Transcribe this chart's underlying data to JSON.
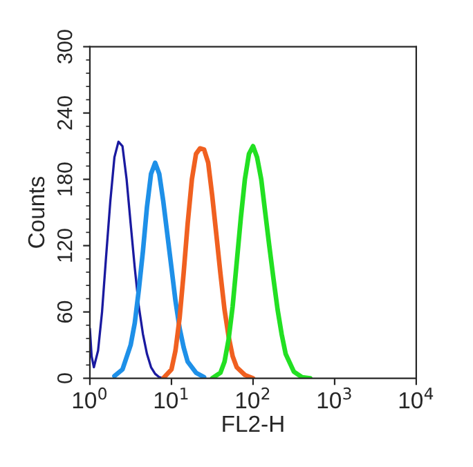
{
  "chart_data": {
    "type": "line",
    "xlabel": "FL2-H",
    "ylabel": "Counts",
    "log": "x",
    "grid": false,
    "legend": false,
    "marker": "none",
    "line_style": "solid",
    "xlim": [
      1,
      10000
    ],
    "xticks": [
      {
        "value": 1,
        "label": "10$^{0}$"
      },
      {
        "value": 10,
        "label": "10$^{1}$"
      },
      {
        "value": 100,
        "label": "10$^{2}$"
      },
      {
        "value": 1000,
        "label": "10$^{3}$"
      },
      {
        "value": 10000,
        "label": "10$^{4}$"
      }
    ],
    "ylim": [
      0,
      300
    ],
    "yticks": [
      0,
      60,
      120,
      180,
      240,
      300
    ],
    "series": [
      {
        "color": "#1a1aa0",
        "x": [
          1,
          1.05,
          1.12,
          1.26,
          1.41,
          1.58,
          1.78,
          2.0,
          2.24,
          2.51,
          2.82,
          3.16,
          3.55,
          3.98,
          4.47,
          5.01,
          5.62,
          6.31,
          7.08,
          7.94
        ],
        "values": [
          45,
          20,
          10,
          25,
          60,
          110,
          160,
          200,
          214,
          210,
          180,
          140,
          100,
          65,
          40,
          22,
          10,
          4,
          1,
          0
        ]
      },
      {
        "color": "#1e90e8",
        "x": [
          2.0,
          2.51,
          3.16,
          3.55,
          3.98,
          4.47,
          5.01,
          5.62,
          6.31,
          7.08,
          7.94,
          8.91,
          10,
          11.2,
          12.6,
          14.1,
          15.8,
          20,
          25.1
        ],
        "values": [
          2,
          8,
          30,
          50,
          80,
          115,
          155,
          185,
          195,
          185,
          160,
          130,
          100,
          70,
          45,
          28,
          15,
          5,
          1
        ]
      },
      {
        "color": "#f06020",
        "x": [
          7.94,
          10,
          11.2,
          12.6,
          14.1,
          15.8,
          17.8,
          20,
          22.4,
          25.1,
          28.2,
          31.6,
          35.5,
          39.8,
          44.7,
          50.1,
          56.2,
          63.1,
          79.4,
          100
        ],
        "values": [
          0,
          8,
          25,
          55,
          95,
          140,
          180,
          203,
          208,
          207,
          195,
          165,
          130,
          95,
          62,
          38,
          20,
          10,
          3,
          0
        ]
      },
      {
        "color": "#22e022",
        "x": [
          31.6,
          39.8,
          44.7,
          50.1,
          56.2,
          63.1,
          70.8,
          79.4,
          89.1,
          100,
          112,
          126,
          141,
          158,
          178,
          200,
          224,
          251,
          316,
          398,
          501
        ],
        "values": [
          0,
          5,
          15,
          35,
          65,
          105,
          145,
          180,
          203,
          210,
          200,
          180,
          150,
          120,
          90,
          62,
          40,
          22,
          6,
          1,
          0
        ]
      }
    ]
  }
}
